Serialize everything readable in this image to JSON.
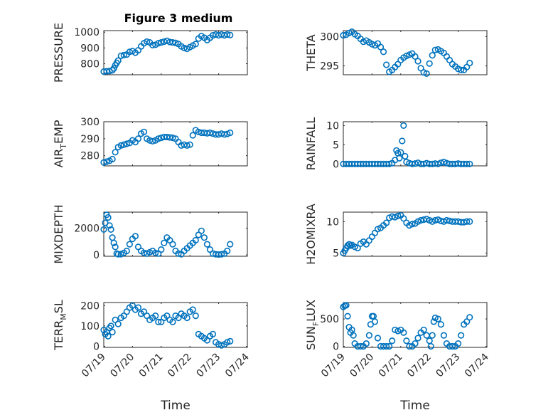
{
  "title": "Figure 3 medium",
  "xlabel": "Time",
  "marker_color": "#0072bd",
  "chart_data": [
    {
      "type": "scatter",
      "ylabel": "PRESSURE",
      "ylim": [
        730,
        1010
      ],
      "yticks": [
        800,
        900,
        1000
      ],
      "xlim": [
        0,
        5
      ],
      "grid": true,
      "x": [
        0.0,
        0.1,
        0.2,
        0.3,
        0.35,
        0.4,
        0.45,
        0.5,
        0.6,
        0.7,
        0.8,
        0.9,
        1.0,
        1.1,
        1.2,
        1.3,
        1.4,
        1.5,
        1.6,
        1.7,
        1.8,
        1.9,
        2.0,
        2.1,
        2.2,
        2.3,
        2.4,
        2.5,
        2.6,
        2.7,
        2.8,
        2.9,
        3.0,
        3.1,
        3.2,
        3.3,
        3.4,
        3.5,
        3.6,
        3.7,
        3.8,
        3.9,
        4.0,
        4.1,
        4.2,
        4.3,
        4.4
      ],
      "y": [
        750,
        752,
        753,
        758,
        770,
        790,
        805,
        820,
        850,
        855,
        858,
        875,
        880,
        870,
        885,
        910,
        930,
        940,
        935,
        918,
        920,
        930,
        935,
        940,
        945,
        938,
        935,
        932,
        925,
        910,
        900,
        895,
        905,
        915,
        925,
        960,
        975,
        965,
        950,
        965,
        980,
        985,
        980,
        985,
        980,
        985,
        982
      ]
    },
    {
      "type": "scatter",
      "ylabel": "THETA",
      "ylim": [
        293.5,
        301
      ],
      "yticks": [
        295,
        300
      ],
      "xlim": [
        0,
        5
      ],
      "grid": true,
      "x": [
        0.0,
        0.1,
        0.2,
        0.3,
        0.4,
        0.5,
        0.6,
        0.7,
        0.8,
        0.9,
        1.0,
        1.1,
        1.2,
        1.3,
        1.4,
        1.5,
        1.6,
        1.7,
        1.8,
        1.9,
        2.0,
        2.1,
        2.2,
        2.3,
        2.4,
        2.5,
        2.6,
        2.7,
        2.8,
        2.9,
        3.0,
        3.1,
        3.2,
        3.3,
        3.4,
        3.5,
        3.6,
        3.7,
        3.8,
        3.9,
        4.0,
        4.1,
        4.2,
        4.3,
        4.4
      ],
      "y": [
        300.2,
        300.3,
        300.6,
        300.8,
        300.4,
        300.1,
        299.6,
        299.1,
        299.3,
        299.0,
        298.7,
        298.5,
        298.8,
        298.2,
        297.4,
        295.2,
        294.0,
        294.3,
        294.8,
        295.3,
        296.0,
        296.4,
        296.7,
        296.9,
        297.1,
        296.6,
        295.8,
        294.6,
        293.9,
        293.7,
        295.4,
        296.8,
        297.7,
        297.8,
        297.5,
        297.2,
        296.6,
        296.0,
        295.3,
        294.9,
        294.5,
        294.3,
        294.3,
        294.8,
        295.5
      ]
    },
    {
      "type": "scatter",
      "ylabel": "AIR_TEMP",
      "ylim": [
        274,
        300
      ],
      "yticks": [
        280,
        290,
        300
      ],
      "xlim": [
        0,
        5
      ],
      "grid": true,
      "x": [
        0.0,
        0.1,
        0.2,
        0.3,
        0.4,
        0.5,
        0.6,
        0.7,
        0.8,
        0.9,
        1.0,
        1.1,
        1.2,
        1.3,
        1.4,
        1.5,
        1.6,
        1.7,
        1.8,
        1.9,
        2.0,
        2.1,
        2.2,
        2.3,
        2.4,
        2.5,
        2.6,
        2.7,
        2.8,
        2.9,
        3.0,
        3.1,
        3.2,
        3.3,
        3.4,
        3.5,
        3.6,
        3.7,
        3.8,
        3.9,
        4.0,
        4.1,
        4.2,
        4.3,
        4.4
      ],
      "y": [
        276,
        276.5,
        277,
        278,
        282,
        285,
        286,
        286.5,
        287,
        287.5,
        289,
        288,
        290,
        293,
        294,
        290,
        289,
        288.5,
        289,
        290,
        290.5,
        291,
        291,
        290.8,
        290.5,
        290,
        288,
        286,
        286.5,
        286,
        286.5,
        292,
        295,
        294,
        293.5,
        293.5,
        293.2,
        293.5,
        293,
        292.5,
        292.5,
        293,
        292.5,
        292.8,
        293.5
      ]
    },
    {
      "type": "scatter",
      "ylabel": "RAINFALL",
      "ylim": [
        -0.5,
        11
      ],
      "yticks": [
        0,
        5,
        10
      ],
      "xlim": [
        0,
        5
      ],
      "grid": true,
      "x": [
        0.0,
        0.1,
        0.2,
        0.3,
        0.4,
        0.5,
        0.6,
        0.7,
        0.8,
        0.9,
        1.0,
        1.1,
        1.2,
        1.3,
        1.4,
        1.5,
        1.6,
        1.7,
        1.8,
        1.85,
        1.9,
        1.95,
        2.0,
        2.05,
        2.1,
        2.15,
        2.2,
        2.3,
        2.4,
        2.5,
        2.6,
        2.7,
        2.8,
        2.9,
        3.0,
        3.1,
        3.2,
        3.3,
        3.4,
        3.5,
        3.6,
        3.7,
        3.8,
        3.9,
        4.0,
        4.1,
        4.2,
        4.3,
        4.4
      ],
      "y": [
        0,
        0,
        0,
        0,
        0,
        0,
        0,
        0,
        0,
        0,
        0,
        0,
        0,
        0,
        0,
        0,
        0,
        0.2,
        1.0,
        3.5,
        2.8,
        1.5,
        3.0,
        6.0,
        10.0,
        2.0,
        0.5,
        0.2,
        0,
        0.1,
        0.3,
        0,
        0,
        0.2,
        0,
        0,
        0.1,
        0,
        0.3,
        0.5,
        0.2,
        0,
        0,
        0,
        0.1,
        0,
        0,
        0,
        0
      ]
    },
    {
      "type": "scatter",
      "ylabel": "MIXDEPTH",
      "ylim": [
        -100,
        3200
      ],
      "yticks": [
        0,
        2000
      ],
      "xlim": [
        0,
        5
      ],
      "grid": true,
      "x": [
        0.0,
        0.05,
        0.1,
        0.15,
        0.2,
        0.25,
        0.3,
        0.35,
        0.4,
        0.45,
        0.5,
        0.6,
        0.7,
        0.8,
        0.9,
        1.0,
        1.1,
        1.2,
        1.3,
        1.4,
        1.5,
        1.6,
        1.7,
        1.8,
        1.9,
        2.0,
        2.1,
        2.2,
        2.3,
        2.4,
        2.5,
        2.6,
        2.7,
        2.8,
        2.9,
        3.0,
        3.1,
        3.2,
        3.3,
        3.4,
        3.5,
        3.6,
        3.7,
        3.8,
        3.9,
        4.0,
        4.1,
        4.2,
        4.3,
        4.4
      ],
      "y": [
        1900,
        2400,
        3000,
        2800,
        2200,
        1900,
        1300,
        900,
        600,
        100,
        50,
        60,
        150,
        300,
        800,
        1200,
        1400,
        600,
        300,
        150,
        100,
        200,
        300,
        150,
        100,
        400,
        900,
        1300,
        1100,
        800,
        300,
        100,
        50,
        300,
        500,
        700,
        900,
        1100,
        1500,
        1800,
        1300,
        800,
        400,
        100,
        50,
        30,
        50,
        100,
        300,
        800
      ]
    },
    {
      "type": "scatter",
      "ylabel": "H2OMIXRA",
      "ylim": [
        4.5,
        11.5
      ],
      "yticks": [
        5,
        10
      ],
      "xlim": [
        0,
        5
      ],
      "grid": true,
      "x": [
        0.0,
        0.05,
        0.1,
        0.15,
        0.2,
        0.25,
        0.3,
        0.4,
        0.5,
        0.6,
        0.7,
        0.8,
        0.9,
        1.0,
        1.1,
        1.2,
        1.3,
        1.4,
        1.5,
        1.6,
        1.7,
        1.8,
        1.9,
        2.0,
        2.1,
        2.2,
        2.3,
        2.4,
        2.5,
        2.6,
        2.7,
        2.8,
        2.9,
        3.0,
        3.1,
        3.2,
        3.3,
        3.4,
        3.5,
        3.6,
        3.7,
        3.8,
        3.9,
        4.0,
        4.1,
        4.2,
        4.3,
        4.4
      ],
      "y": [
        5.0,
        5.4,
        5.8,
        6.2,
        6.4,
        6.2,
        6.3,
        6.0,
        5.8,
        6.5,
        6.8,
        6.4,
        7.0,
        7.6,
        8.2,
        8.8,
        9.0,
        9.4,
        9.8,
        10.6,
        10.8,
        10.7,
        10.9,
        11.0,
        10.5,
        9.8,
        9.4,
        9.6,
        9.7,
        10.0,
        10.2,
        10.3,
        10.4,
        10.2,
        10.0,
        10.2,
        10.3,
        10.1,
        10.0,
        10.2,
        10.1,
        10.0,
        10.0,
        10.0,
        9.9,
        9.9,
        10.0,
        10.0
      ]
    },
    {
      "type": "scatter",
      "ylabel": "TERR_MSL",
      "ylim": [
        -5,
        215
      ],
      "yticks": [
        0,
        100,
        200
      ],
      "xlim": [
        0,
        5
      ],
      "grid": true,
      "x": [
        0.0,
        0.05,
        0.1,
        0.15,
        0.2,
        0.25,
        0.3,
        0.4,
        0.5,
        0.6,
        0.7,
        0.8,
        0.9,
        1.0,
        1.1,
        1.2,
        1.3,
        1.4,
        1.5,
        1.6,
        1.7,
        1.8,
        1.9,
        2.0,
        2.1,
        2.2,
        2.3,
        2.4,
        2.5,
        2.6,
        2.7,
        2.8,
        2.9,
        3.0,
        3.1,
        3.2,
        3.3,
        3.4,
        3.5,
        3.6,
        3.7,
        3.8,
        3.9,
        4.0,
        4.1,
        4.2,
        4.3,
        4.4
      ],
      "y": [
        80,
        60,
        70,
        50,
        90,
        100,
        70,
        130,
        110,
        140,
        150,
        170,
        190,
        200,
        180,
        190,
        160,
        170,
        150,
        130,
        140,
        150,
        120,
        120,
        140,
        150,
        130,
        120,
        150,
        140,
        160,
        150,
        140,
        170,
        180,
        150,
        60,
        50,
        40,
        30,
        50,
        60,
        20,
        10,
        5,
        10,
        20,
        25
      ]
    },
    {
      "type": "scatter",
      "ylabel": "SUN_FLUX",
      "ylim": [
        -20,
        800
      ],
      "yticks": [
        0,
        500
      ],
      "xlim": [
        0,
        5
      ],
      "grid": true,
      "x": [
        0.0,
        0.05,
        0.1,
        0.15,
        0.2,
        0.25,
        0.3,
        0.35,
        0.4,
        0.5,
        0.6,
        0.7,
        0.8,
        0.9,
        0.95,
        1.0,
        1.05,
        1.1,
        1.2,
        1.3,
        1.4,
        1.5,
        1.6,
        1.7,
        1.8,
        1.9,
        2.0,
        2.1,
        2.2,
        2.3,
        2.4,
        2.5,
        2.6,
        2.7,
        2.8,
        2.9,
        3.0,
        3.05,
        3.1,
        3.15,
        3.2,
        3.3,
        3.4,
        3.5,
        3.6,
        3.7,
        3.8,
        3.9,
        4.0,
        4.1,
        4.2,
        4.3,
        4.4
      ],
      "y": [
        720,
        740,
        750,
        550,
        350,
        250,
        300,
        200,
        50,
        0,
        0,
        0,
        50,
        200,
        400,
        550,
        550,
        450,
        150,
        0,
        0,
        0,
        0,
        100,
        300,
        280,
        300,
        250,
        100,
        0,
        0,
        50,
        150,
        250,
        300,
        200,
        100,
        0,
        200,
        450,
        520,
        500,
        400,
        200,
        50,
        0,
        0,
        0,
        50,
        200,
        400,
        450,
        530
      ]
    }
  ],
  "xticks": [
    "07/19",
    "07/20",
    "07/21",
    "07/22",
    "07/23",
    "07/24"
  ]
}
